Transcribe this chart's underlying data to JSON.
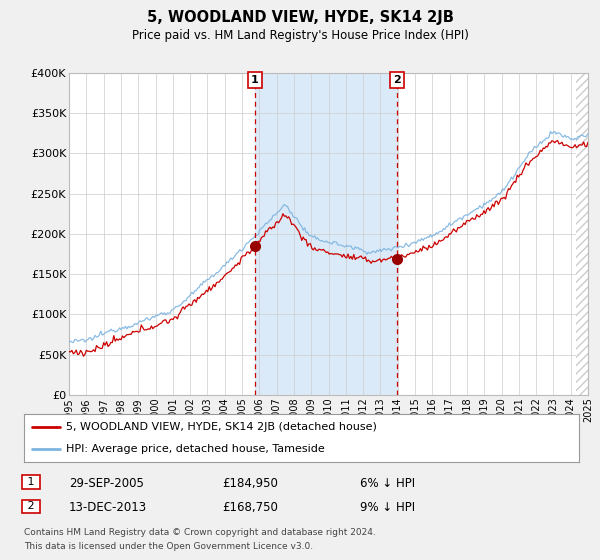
{
  "title": "5, WOODLAND VIEW, HYDE, SK14 2JB",
  "subtitle": "Price paid vs. HM Land Registry's House Price Index (HPI)",
  "ylim": [
    0,
    400000
  ],
  "xlim": [
    1995,
    2025
  ],
  "yticks": [
    0,
    50000,
    100000,
    150000,
    200000,
    250000,
    300000,
    350000,
    400000
  ],
  "ytick_labels": [
    "£0",
    "£50K",
    "£100K",
    "£150K",
    "£200K",
    "£250K",
    "£300K",
    "£350K",
    "£400K"
  ],
  "xticks": [
    1995,
    1996,
    1997,
    1998,
    1999,
    2000,
    2001,
    2002,
    2003,
    2004,
    2005,
    2006,
    2007,
    2008,
    2009,
    2010,
    2011,
    2012,
    2013,
    2014,
    2015,
    2016,
    2017,
    2018,
    2019,
    2020,
    2021,
    2022,
    2023,
    2024,
    2025
  ],
  "hpi_color": "#7eb4e0",
  "price_color": "#cc0000",
  "shading_color": "#daeaf8",
  "vline_color": "#cc0000",
  "marker1_date": 2005.75,
  "marker1_price": 184950,
  "marker2_date": 2013.96,
  "marker2_price": 168750,
  "legend_line1": "5, WOODLAND VIEW, HYDE, SK14 2JB (detached house)",
  "legend_line2": "HPI: Average price, detached house, Tameside",
  "table_row1": [
    "1",
    "29-SEP-2005",
    "£184,950",
    "6% ↓ HPI"
  ],
  "table_row2": [
    "2",
    "13-DEC-2013",
    "£168,750",
    "9% ↓ HPI"
  ],
  "footnote1": "Contains HM Land Registry data © Crown copyright and database right 2024.",
  "footnote2": "This data is licensed under the Open Government Licence v3.0.",
  "background_color": "#f0f0f0",
  "plot_bg_color": "#ffffff",
  "grid_color": "#cccccc"
}
